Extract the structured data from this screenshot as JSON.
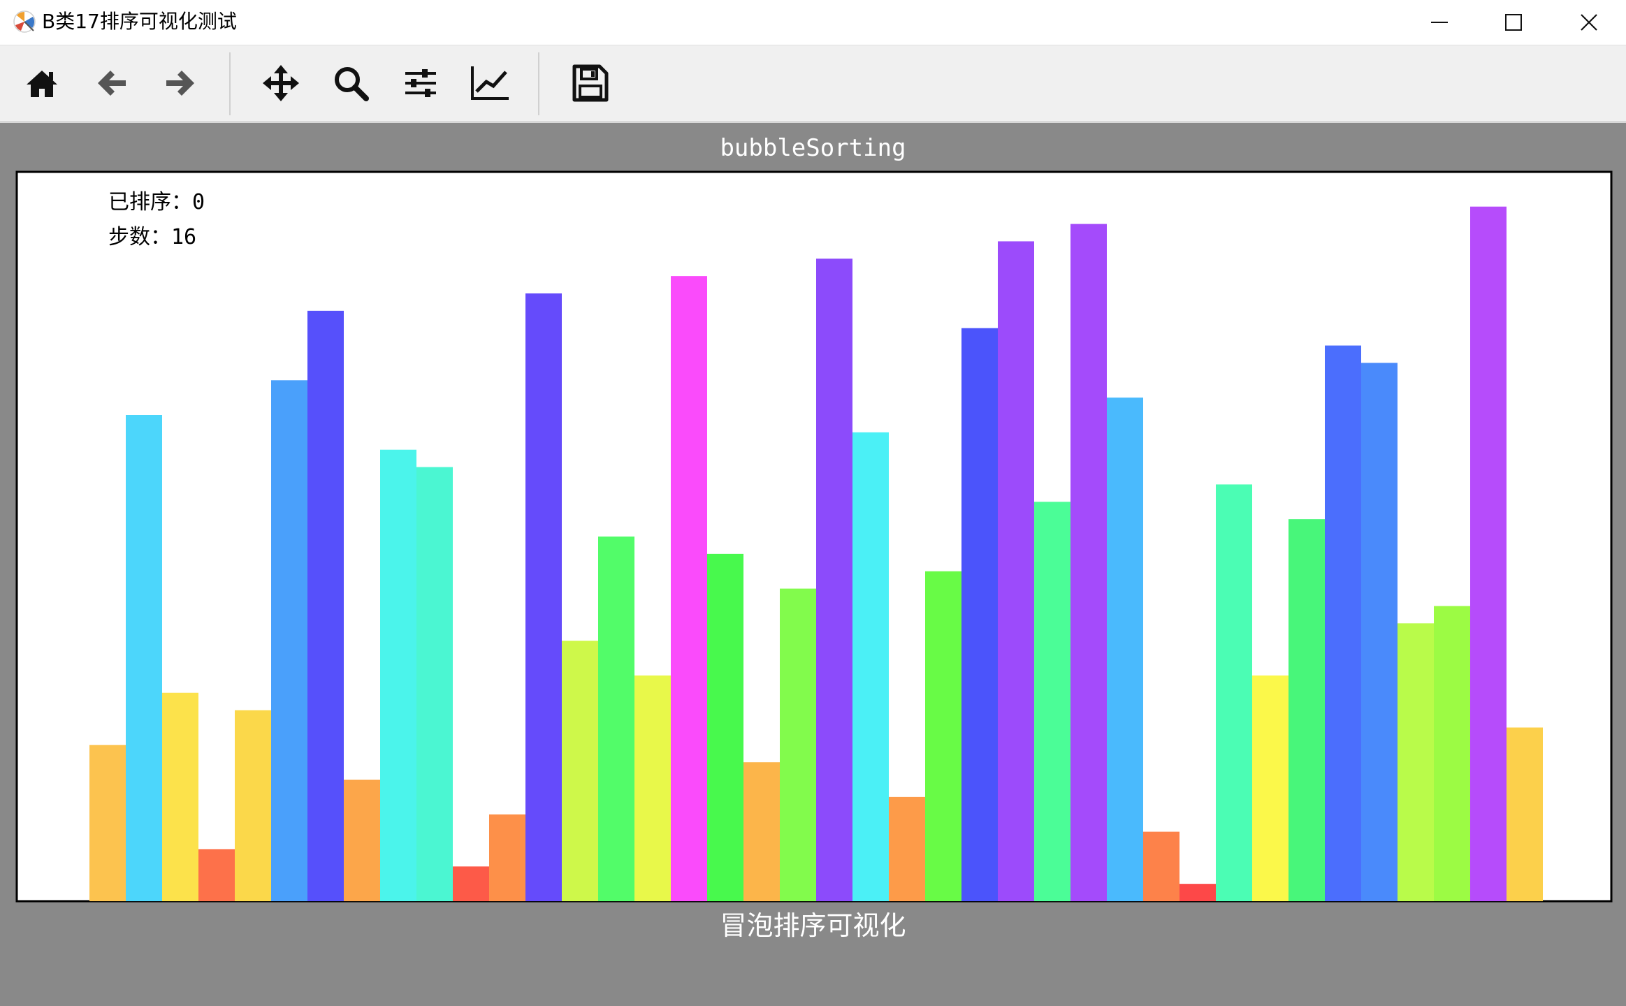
{
  "window": {
    "title": "B类17排序可视化测试"
  },
  "toolbar": {
    "buttons": [
      {
        "name": "home",
        "icon": "home-icon"
      },
      {
        "name": "back",
        "icon": "arrow-left-icon"
      },
      {
        "name": "forward",
        "icon": "arrow-right-icon"
      },
      {
        "name": "pan",
        "icon": "move-icon"
      },
      {
        "name": "zoom",
        "icon": "magnifier-icon"
      },
      {
        "name": "configure-subplots",
        "icon": "sliders-icon"
      },
      {
        "name": "edit-axis",
        "icon": "line-chart-icon"
      },
      {
        "name": "save",
        "icon": "floppy-disk-icon"
      }
    ]
  },
  "chart_data": {
    "type": "bar",
    "title": "bubbleSorting",
    "xlabel": "冒泡排序可视化",
    "ylabel": "",
    "annotations": {
      "sorted_label": "已排序：0",
      "steps_label": "步数：16"
    },
    "axes_visible": false,
    "grid": false,
    "ylim": [
      0,
      42
    ],
    "values": [
      9,
      28,
      12,
      3,
      11,
      30,
      34,
      7,
      26,
      25,
      2,
      5,
      35,
      15,
      21,
      13,
      36,
      20,
      8,
      18,
      37,
      27,
      6,
      19,
      33,
      38,
      23,
      39,
      29,
      4,
      1,
      24,
      13,
      22,
      32,
      31,
      16,
      17,
      40,
      10
    ],
    "colors": [
      "#fcc34f",
      "#4cd6fb",
      "#fce24b",
      "#fd714a",
      "#fbd84a",
      "#4aa0fb",
      "#5650fb",
      "#fca64a",
      "#4bf4eb",
      "#4bf6d2",
      "#fd5a48",
      "#fd9049",
      "#654bfb",
      "#cef84a",
      "#52fc69",
      "#e8f84a",
      "#fa4bfb",
      "#48f94d",
      "#fcb54a",
      "#82fb4c",
      "#8c4bfb",
      "#4bf0f6",
      "#fd9b49",
      "#68fb46",
      "#4b54fb",
      "#9c4bfb",
      "#4bfd97",
      "#a44bfb",
      "#4abafd",
      "#fd824a",
      "#fd4848",
      "#4bfdb4",
      "#fbf84a",
      "#48f67a",
      "#4b6efd",
      "#4a8afb",
      "#b9fb4a",
      "#9cfb44",
      "#b64cfb",
      "#fcd04b"
    ]
  }
}
